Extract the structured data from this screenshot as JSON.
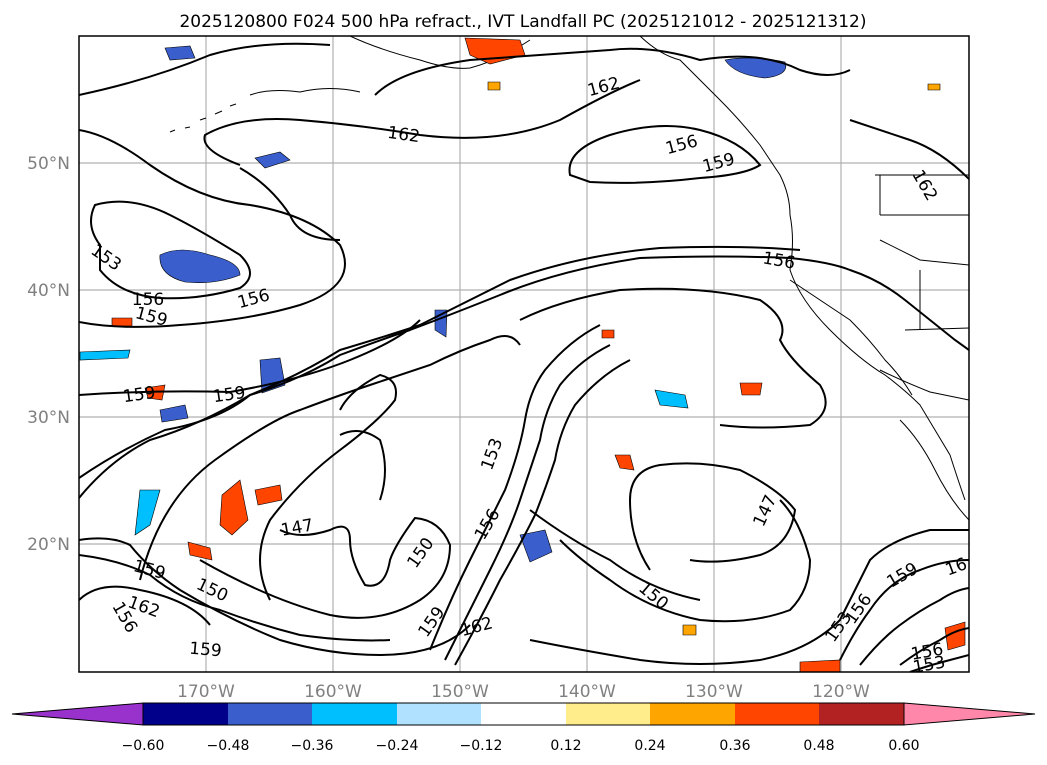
{
  "title": "2025120800 F024 500 hPa refract., IVT Landfall PC (2025121012 - 2025121312)",
  "map": {
    "lat_ticks": [
      "50°N",
      "40°N",
      "30°N",
      "20°N"
    ],
    "lon_ticks": [
      "170°W",
      "160°W",
      "150°W",
      "140°W",
      "130°W",
      "120°W"
    ],
    "contour_labels": [
      "162",
      "162",
      "156",
      "159",
      "162",
      "153",
      "156",
      "159",
      "156",
      "159",
      "159",
      "159",
      "147",
      "150",
      "153",
      "156",
      "159",
      "162",
      "150",
      "147",
      "156",
      "159",
      "162",
      "156",
      "150",
      "159",
      "153",
      "156",
      "153",
      "156",
      "159",
      "16",
      "159"
    ]
  },
  "colorbar": {
    "ticks": [
      "−0.60",
      "−0.48",
      "−0.36",
      "−0.24",
      "−0.12",
      "0.12",
      "0.24",
      "0.36",
      "0.48",
      "0.60"
    ],
    "colors": [
      "#9932cc",
      "#00008b",
      "#3a5fcd",
      "#00bfff",
      "#b0e2ff",
      "#ffffff",
      "#ffec8b",
      "#ffa500",
      "#ff4500",
      "#b22222",
      "#ff88aa"
    ]
  }
}
